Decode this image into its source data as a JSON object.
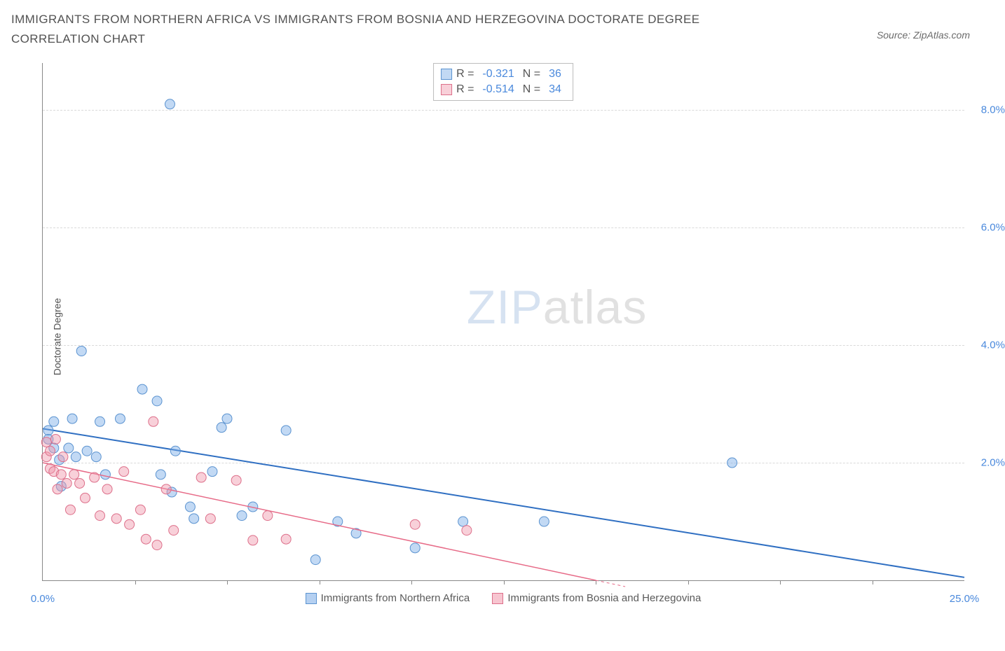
{
  "title": "IMMIGRANTS FROM NORTHERN AFRICA VS IMMIGRANTS FROM BOSNIA AND HERZEGOVINA DOCTORATE DEGREE CORRELATION CHART",
  "source": "Source: ZipAtlas.com",
  "yaxis_title": "Doctorate Degree",
  "watermark_zip": "ZIP",
  "watermark_atlas": "atlas",
  "chart": {
    "type": "scatter",
    "xlim": [
      0,
      25
    ],
    "ylim": [
      0,
      8.8
    ],
    "xtick_labels": [
      {
        "v": 0,
        "label": "0.0%",
        "color": "#4a89dc"
      },
      {
        "v": 25,
        "label": "25.0%",
        "color": "#4a89dc"
      }
    ],
    "xtick_marks": [
      2.5,
      5.0,
      7.5,
      10.0,
      12.5,
      15.0,
      17.5,
      20.0,
      22.5
    ],
    "ytick_labels": [
      {
        "v": 2,
        "label": "2.0%",
        "color": "#4a89dc"
      },
      {
        "v": 4,
        "label": "4.0%",
        "color": "#4a89dc"
      },
      {
        "v": 6,
        "label": "6.0%",
        "color": "#4a89dc"
      },
      {
        "v": 8,
        "label": "8.0%",
        "color": "#4a89dc"
      }
    ],
    "gridlines_y": [
      2,
      4,
      6,
      8
    ],
    "grid_color": "#d9d9d9",
    "background_color": "#ffffff",
    "axis_color": "#888888",
    "series": [
      {
        "name": "Immigrants from Northern Africa",
        "color_fill": "rgba(120,170,230,0.45)",
        "color_stroke": "#5b93d0",
        "marker_radius": 7,
        "trend": {
          "x1": 0,
          "y1": 2.58,
          "x2": 25,
          "y2": 0.05,
          "color": "#2f6fc2",
          "width": 2
        },
        "R": "-0.321",
        "N": "36",
        "points": [
          [
            0.15,
            2.55
          ],
          [
            0.15,
            2.4
          ],
          [
            0.3,
            2.7
          ],
          [
            0.3,
            2.25
          ],
          [
            0.45,
            2.05
          ],
          [
            0.5,
            1.6
          ],
          [
            0.7,
            2.25
          ],
          [
            0.8,
            2.75
          ],
          [
            0.9,
            2.1
          ],
          [
            1.05,
            3.9
          ],
          [
            1.2,
            2.2
          ],
          [
            1.45,
            2.1
          ],
          [
            1.55,
            2.7
          ],
          [
            1.7,
            1.8
          ],
          [
            2.1,
            2.75
          ],
          [
            2.7,
            3.25
          ],
          [
            3.1,
            3.05
          ],
          [
            3.2,
            1.8
          ],
          [
            3.45,
            8.1
          ],
          [
            3.5,
            1.5
          ],
          [
            3.6,
            2.2
          ],
          [
            4.0,
            1.25
          ],
          [
            4.1,
            1.05
          ],
          [
            4.85,
            2.6
          ],
          [
            5.0,
            2.75
          ],
          [
            5.4,
            1.1
          ],
          [
            5.7,
            1.25
          ],
          [
            6.6,
            2.55
          ],
          [
            7.4,
            0.35
          ],
          [
            8.0,
            1.0
          ],
          [
            8.5,
            0.8
          ],
          [
            10.1,
            0.55
          ],
          [
            11.4,
            1.0
          ],
          [
            13.6,
            1.0
          ],
          [
            18.7,
            2.0
          ],
          [
            4.6,
            1.85
          ]
        ]
      },
      {
        "name": "Immigrants from Bosnia and Herzegovina",
        "color_fill": "rgba(240,150,170,0.45)",
        "color_stroke": "#dd6f8a",
        "marker_radius": 7,
        "trend": {
          "x1": 0,
          "y1": 2.0,
          "x2": 15.0,
          "y2": 0.0,
          "color": "#e76b88",
          "width": 1.5,
          "extend_dash_to": 15.8
        },
        "R": "-0.514",
        "N": "34",
        "points": [
          [
            0.1,
            2.35
          ],
          [
            0.1,
            2.1
          ],
          [
            0.2,
            1.9
          ],
          [
            0.2,
            2.2
          ],
          [
            0.3,
            1.85
          ],
          [
            0.35,
            2.4
          ],
          [
            0.4,
            1.55
          ],
          [
            0.5,
            1.8
          ],
          [
            0.55,
            2.1
          ],
          [
            0.65,
            1.65
          ],
          [
            0.75,
            1.2
          ],
          [
            0.85,
            1.8
          ],
          [
            1.0,
            1.65
          ],
          [
            1.15,
            1.4
          ],
          [
            1.4,
            1.75
          ],
          [
            1.55,
            1.1
          ],
          [
            1.75,
            1.55
          ],
          [
            2.0,
            1.05
          ],
          [
            2.2,
            1.85
          ],
          [
            2.35,
            0.95
          ],
          [
            2.65,
            1.2
          ],
          [
            2.8,
            0.7
          ],
          [
            3.0,
            2.7
          ],
          [
            3.1,
            0.6
          ],
          [
            3.35,
            1.55
          ],
          [
            3.55,
            0.85
          ],
          [
            4.3,
            1.75
          ],
          [
            4.55,
            1.05
          ],
          [
            5.25,
            1.7
          ],
          [
            5.7,
            0.68
          ],
          [
            6.1,
            1.1
          ],
          [
            6.6,
            0.7
          ],
          [
            10.1,
            0.95
          ],
          [
            11.5,
            0.85
          ]
        ]
      }
    ],
    "legend_stats": {
      "label_R": "R =",
      "label_N": "N =",
      "value_color": "#4a89dc",
      "label_color": "#555555"
    },
    "legend_bottom": [
      {
        "swatch_fill": "rgba(120,170,230,0.55)",
        "swatch_stroke": "#5b93d0",
        "label": "Immigrants from Northern Africa"
      },
      {
        "swatch_fill": "rgba(240,150,170,0.55)",
        "swatch_stroke": "#dd6f8a",
        "label": "Immigrants from Bosnia and Herzegovina"
      }
    ]
  }
}
